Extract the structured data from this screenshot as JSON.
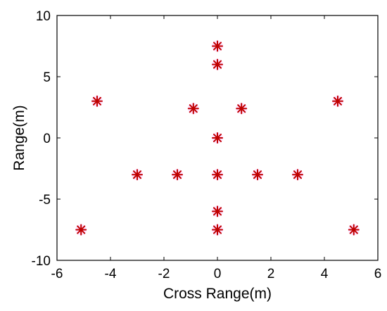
{
  "chart_data": {
    "type": "scatter",
    "title": "",
    "xlabel": "Cross Range(m)",
    "ylabel": "Range(m)",
    "xlim": [
      -6,
      6
    ],
    "ylim": [
      -10,
      10
    ],
    "xticks": [
      -6,
      -4,
      -2,
      0,
      2,
      4,
      6
    ],
    "yticks": [
      -10,
      -5,
      0,
      5,
      10
    ],
    "xtick_labels": [
      "-6",
      "-4",
      "-2",
      "0",
      "2",
      "4",
      "6"
    ],
    "ytick_labels": [
      "-10",
      "-5",
      "0",
      "5",
      "10"
    ],
    "grid": false,
    "legend": "none",
    "marker": "asterisk",
    "marker_color": "#c00000",
    "marker_glow_color": "#ff66ff",
    "series": [
      {
        "x": [
          0,
          0,
          -4.5,
          4.5,
          -0.9,
          0.9,
          0,
          -3,
          -1.5,
          0,
          1.5,
          3,
          0,
          -5.1,
          0,
          5.1
        ],
        "y": [
          7.5,
          6,
          3,
          3,
          2.4,
          2.4,
          0,
          -3,
          -3,
          -3,
          -3,
          -3,
          -6,
          -7.5,
          -7.5,
          -7.5
        ]
      }
    ]
  }
}
